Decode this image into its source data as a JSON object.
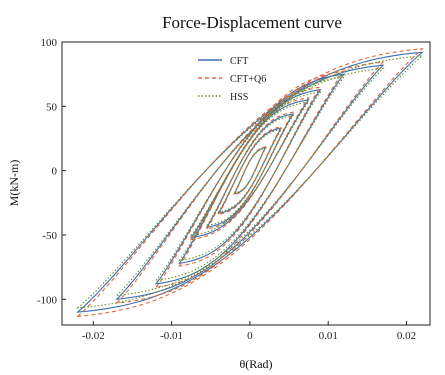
{
  "chart_data": {
    "type": "line",
    "title": "Force-Displacement curve",
    "xlabel": "θ(Rad)",
    "ylabel": "M(kN-m)",
    "xlim": [
      -0.024,
      0.023
    ],
    "ylim": [
      -120,
      100
    ],
    "xticks": [
      -0.02,
      -0.01,
      0,
      0.01,
      0.02
    ],
    "xtick_labels": [
      "-0.02",
      "-0.01",
      "0",
      "0.01",
      "0.02"
    ],
    "yticks": [
      -100,
      -50,
      0,
      50,
      100
    ],
    "ytick_labels": [
      "-100",
      "-50",
      "0",
      "50",
      "100"
    ],
    "grid": false,
    "legend_position": "top-center",
    "cycles": [
      {
        "amplitude": 0.002,
        "peak_positive": 18,
        "peak_negative": -18
      },
      {
        "amplitude": 0.004,
        "peak_positive": 33,
        "peak_negative": -33
      },
      {
        "amplitude": 0.0055,
        "peak_positive": 44,
        "peak_negative": -44
      },
      {
        "amplitude": 0.0075,
        "peak_positive": 55,
        "peak_negative": -52
      },
      {
        "amplitude": 0.009,
        "peak_positive": 63,
        "peak_negative": -72
      },
      {
        "amplitude": 0.012,
        "peak_positive": 75,
        "peak_negative": -88
      },
      {
        "amplitude": 0.017,
        "peak_positive": 82,
        "peak_negative": -100
      },
      {
        "amplitude": 0.022,
        "peak_positive": 92,
        "peak_negative": -110
      }
    ],
    "series": [
      {
        "name": "CFT",
        "color": "#3a6fb0",
        "dash": "solid",
        "scale": 1.0
      },
      {
        "name": "CFT+Q6",
        "color": "#e0663a",
        "dash": "dashed",
        "scale": 1.03
      },
      {
        "name": "HSS",
        "color": "#6b8e23",
        "dash": "dotted",
        "scale": 0.97
      }
    ]
  }
}
